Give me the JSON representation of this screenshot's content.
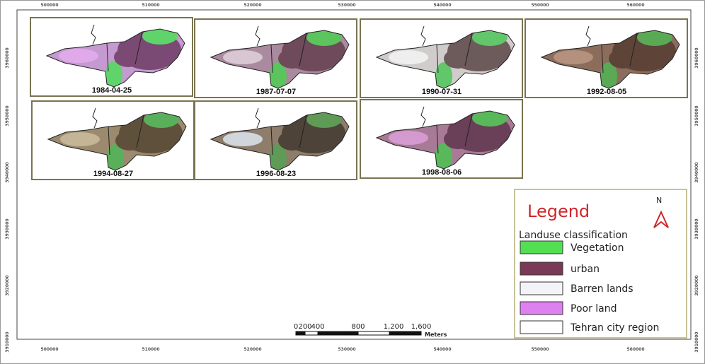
{
  "axes": {
    "top": [
      "500000",
      "510000",
      "520000",
      "530000",
      "540000",
      "550000",
      "560000"
    ],
    "bottom": [
      "500000",
      "510000",
      "520000",
      "530000",
      "540000",
      "550000",
      "560000"
    ],
    "left": [
      "3960000",
      "3950000",
      "3940000",
      "3930000",
      "3920000",
      "3910000"
    ],
    "right": [
      "3960000",
      "3950000",
      "3940000",
      "3930000",
      "3920000",
      "3910000"
    ]
  },
  "panels": [
    {
      "date": "1984-04-25"
    },
    {
      "date": "1987-07-07"
    },
    {
      "date": "1990-07-31"
    },
    {
      "date": "1992-08-05"
    },
    {
      "date": "1994-08-27"
    },
    {
      "date": "1996-08-23"
    },
    {
      "date": "1998-08-06"
    }
  ],
  "legend": {
    "title": "Legend",
    "north": "N",
    "subtitle": "Landuse classification",
    "items": [
      {
        "label": "Vegetation",
        "color": "#52e052"
      },
      {
        "label": "urban",
        "color": "#7a3a57"
      },
      {
        "label": "Barren lands",
        "color": "#f4f4f8"
      },
      {
        "label": "Poor land",
        "color": "#df80f0"
      },
      {
        "label": "Tehran city region",
        "color": "#ffffff"
      }
    ]
  },
  "scale_bar": {
    "labels": [
      "0",
      "200",
      "400",
      "800",
      "1,200",
      "1,600"
    ],
    "unit": "Meters"
  }
}
